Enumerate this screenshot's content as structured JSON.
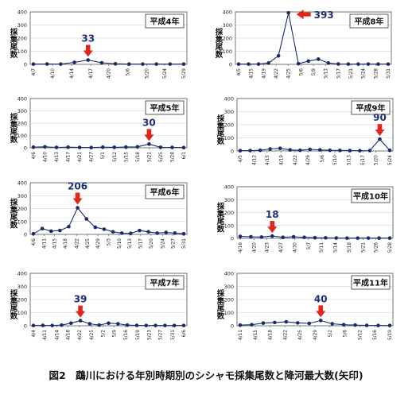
{
  "caption": "図2　鵡川における年別時期別のシシャモ採集尾数と降河最大数(矢印)",
  "chart_data": [
    {
      "type": "line",
      "title": "平成4年",
      "ylabel": "採集尾数",
      "ylim": [
        0,
        400
      ],
      "yticks": [
        0,
        100,
        200,
        300,
        400
      ],
      "categories": [
        "4/7",
        "4/10",
        "4/14",
        "4/17",
        "4/20",
        "5/6",
        "5/20",
        "5/24",
        "5/29"
      ],
      "x": [
        0,
        1,
        2,
        3,
        4,
        5,
        6,
        7,
        8,
        9,
        10,
        11
      ],
      "tick_positions": [
        0,
        1.4,
        2.8,
        4.2,
        5.5,
        6.9,
        8.3,
        9.6,
        11
      ],
      "values": [
        2,
        3,
        2,
        15,
        33,
        12,
        4,
        2,
        2,
        2,
        2,
        2
      ],
      "max_label": "33",
      "max_index": 4
    },
    {
      "type": "line",
      "title": "平成8年",
      "ylabel": "採集尾数",
      "ylim": [
        0,
        400
      ],
      "yticks": [
        0,
        100,
        200,
        300,
        400
      ],
      "categories": [
        "4/5",
        "4/15",
        "4/19",
        "4/22",
        "4/25",
        "5/6",
        "5/9",
        "5/13",
        "5/17",
        "5/21",
        "5/24",
        "5/28",
        "5/31"
      ],
      "x": [
        0,
        1,
        2,
        3,
        4,
        5,
        6,
        7,
        8,
        9,
        10,
        11,
        12,
        13,
        14,
        15
      ],
      "tick_positions": [
        0,
        1.25,
        2.5,
        3.75,
        5,
        6.25,
        7.5,
        8.75,
        10,
        11.25,
        12.5,
        13.75,
        15
      ],
      "values": [
        2,
        2,
        2,
        10,
        65,
        393,
        5,
        25,
        40,
        10,
        3,
        2,
        2,
        2,
        2,
        2
      ],
      "max_label": "393",
      "max_index": 5
    },
    {
      "type": "line",
      "title": "平成5年",
      "ylabel": "採集尾数",
      "ylim": [
        0,
        400
      ],
      "yticks": [
        0,
        100,
        200,
        300,
        400
      ],
      "categories": [
        "4/6",
        "4/10",
        "4/13",
        "4/17",
        "4/21",
        "4/27",
        "5/1",
        "5/12",
        "5/15",
        "5/18",
        "5/21",
        "5/25",
        "5/28",
        "6/1"
      ],
      "x": [
        0,
        1,
        2,
        3,
        4,
        5,
        6,
        7,
        8,
        9,
        10,
        11,
        12,
        13
      ],
      "tick_positions": [
        0,
        1,
        2,
        3,
        4,
        5,
        6,
        7,
        8,
        9,
        10,
        11,
        12,
        13
      ],
      "values": [
        5,
        8,
        3,
        5,
        3,
        2,
        5,
        4,
        6,
        8,
        30,
        4,
        3,
        2
      ],
      "max_label": "30",
      "max_index": 10
    },
    {
      "type": "line",
      "title": "平成9年",
      "ylabel": "採集尾数",
      "ylim": [
        0,
        400
      ],
      "yticks": [
        0,
        100,
        200,
        300,
        400
      ],
      "categories": [
        "4/5",
        "4/12",
        "4/15",
        "4/19",
        "4/22",
        "4/29",
        "5/6",
        "5/10",
        "5/13",
        "5/17",
        "5/20",
        "5/24"
      ],
      "x": [
        0,
        1,
        2,
        3,
        4,
        5,
        6,
        7,
        8,
        9,
        10,
        11,
        12,
        13,
        14,
        15
      ],
      "tick_positions": [
        0,
        1.4,
        2.7,
        4.1,
        5.5,
        6.8,
        8.2,
        9.5,
        10.9,
        12.3,
        13.6,
        15
      ],
      "values": [
        2,
        3,
        5,
        15,
        20,
        8,
        5,
        12,
        8,
        5,
        4,
        3,
        2,
        3,
        90,
        5
      ],
      "max_label": "90",
      "max_index": 14
    },
    {
      "type": "line",
      "title": "平成6年",
      "ylabel": "採集尾数",
      "ylim": [
        0,
        400
      ],
      "yticks": [
        0,
        100,
        200,
        300,
        400
      ],
      "categories": [
        "4/6",
        "4/11",
        "4/15",
        "4/18",
        "4/22",
        "4/25",
        "4/29",
        "5/3",
        "5/10",
        "5/13",
        "5/17",
        "5/20",
        "5/24",
        "5/27",
        "5/31"
      ],
      "x": [
        0,
        1,
        2,
        3,
        4,
        5,
        6,
        7,
        8,
        9,
        10,
        11,
        12,
        13,
        14,
        15,
        16,
        17
      ],
      "tick_positions": [
        0,
        1.2,
        2.4,
        3.6,
        4.9,
        6.1,
        7.3,
        8.5,
        9.7,
        10.9,
        12.1,
        13.3,
        14.6,
        15.8,
        17
      ],
      "values": [
        5,
        45,
        25,
        30,
        60,
        206,
        120,
        55,
        40,
        20,
        10,
        8,
        30,
        20,
        10,
        15,
        10,
        5
      ],
      "max_label": "206",
      "max_index": 5
    },
    {
      "type": "line",
      "title": "平成10年",
      "ylabel": "採集尾数",
      "ylim": [
        0,
        400
      ],
      "yticks": [
        0,
        100,
        200,
        300,
        400
      ],
      "categories": [
        "4/16",
        "4/20",
        "4/23",
        "4/27",
        "4/30",
        "5/7",
        "5/11",
        "5/14",
        "5/18",
        "5/21",
        "5/26",
        "5/28"
      ],
      "x": [
        0,
        1,
        2,
        3,
        4,
        5,
        6,
        7,
        8,
        9,
        10,
        11,
        12,
        13,
        14
      ],
      "tick_positions": [
        0,
        1.3,
        2.5,
        3.8,
        5.1,
        6.4,
        7.6,
        8.9,
        10.2,
        11.5,
        12.7,
        14
      ],
      "values": [
        15,
        12,
        10,
        18,
        8,
        12,
        8,
        5,
        4,
        3,
        2,
        2,
        2,
        2,
        2
      ],
      "max_label": "18",
      "max_index": 3
    },
    {
      "type": "line",
      "title": "平成7年",
      "ylabel": "採集尾数",
      "ylim": [
        0,
        400
      ],
      "yticks": [
        0,
        100,
        200,
        300,
        400
      ],
      "categories": [
        "4/4",
        "4/11",
        "4/14",
        "4/18",
        "4/22",
        "4/25",
        "5/2",
        "5/9",
        "5/16",
        "5/19",
        "5/23",
        "5/27",
        "5/31",
        "6/6"
      ],
      "x": [
        0,
        1,
        2,
        3,
        4,
        5,
        6,
        7,
        8,
        9,
        10,
        11,
        12,
        13,
        14,
        15,
        16
      ],
      "tick_positions": [
        0,
        1.2,
        2.5,
        3.7,
        4.9,
        6.2,
        7.4,
        8.6,
        9.8,
        11.1,
        12.3,
        13.5,
        14.8,
        16
      ],
      "values": [
        2,
        3,
        2,
        5,
        20,
        39,
        15,
        5,
        20,
        15,
        5,
        3,
        2,
        2,
        2,
        2,
        2
      ],
      "max_label": "39",
      "max_index": 5
    },
    {
      "type": "line",
      "title": "平成11年",
      "ylabel": "採集尾数",
      "ylim": [
        0,
        400
      ],
      "yticks": [
        0,
        100,
        200,
        300,
        400
      ],
      "categories": [
        "4/11",
        "4/15",
        "4/18",
        "4/22",
        "4/25",
        "4/29",
        "5/2",
        "5/6",
        "5/12",
        "5/16",
        "5/19"
      ],
      "x": [
        0,
        1,
        2,
        3,
        4,
        5,
        6,
        7,
        8,
        9,
        10,
        11,
        12,
        13
      ],
      "tick_positions": [
        0,
        1.3,
        2.6,
        3.9,
        5.2,
        6.5,
        7.8,
        9.1,
        10.4,
        11.7,
        13
      ],
      "values": [
        5,
        8,
        20,
        25,
        30,
        22,
        18,
        40,
        15,
        8,
        5,
        3,
        2,
        2
      ],
      "max_label": "40",
      "max_index": 7
    }
  ]
}
